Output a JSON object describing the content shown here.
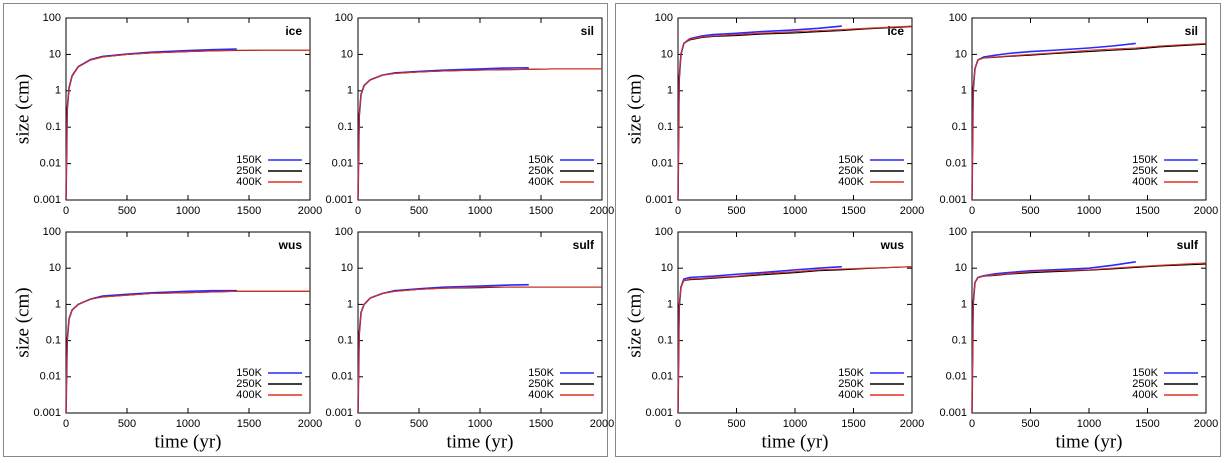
{
  "chart_data": [
    {
      "type": "line",
      "label": "ice",
      "ylabel": "size (cm)",
      "log_y": true,
      "legend": "lower right",
      "x": [
        0,
        10,
        25,
        50,
        100,
        200,
        300,
        500,
        700,
        1000,
        1200,
        1400,
        1600,
        2000
      ],
      "xlim": [
        0,
        2000
      ],
      "xticks": [
        0,
        500,
        1000,
        1500,
        2000
      ],
      "ylim": [
        0.001,
        100
      ],
      "yticks": [
        0.001,
        0.01,
        0.1,
        1,
        10,
        100
      ],
      "series": [
        {
          "name": "150K",
          "color": "#2a2aff",
          "values": [
            0.001,
            0.3,
            1.2,
            2.6,
            4.6,
            7.2,
            8.8,
            10.2,
            11.5,
            12.8,
            13.5,
            14,
            null,
            null
          ]
        },
        {
          "name": "250K",
          "color": "#000000",
          "values": [
            0.001,
            0.3,
            1.2,
            2.5,
            4.5,
            7,
            8.5,
            10,
            11,
            12,
            12.5,
            12.8,
            13,
            13
          ]
        },
        {
          "name": "400K",
          "color": "#e03020",
          "values": [
            0.001,
            0.3,
            1.2,
            2.5,
            4.5,
            7,
            8.5,
            10,
            11,
            12,
            12.5,
            13,
            13,
            13
          ]
        }
      ]
    },
    {
      "type": "line",
      "label": "sil",
      "log_y": true,
      "legend": "lower right",
      "x": [
        0,
        10,
        25,
        50,
        100,
        200,
        300,
        500,
        700,
        1000,
        1200,
        1400,
        1600,
        2000
      ],
      "xlim": [
        0,
        2000
      ],
      "xticks": [
        0,
        500,
        1000,
        1500,
        2000
      ],
      "ylim": [
        0.001,
        100
      ],
      "yticks": [
        0.001,
        0.01,
        0.1,
        1,
        10,
        100
      ],
      "series": [
        {
          "name": "150K",
          "color": "#2a2aff",
          "values": [
            0.001,
            0.2,
            0.8,
            1.4,
            2,
            2.7,
            3.1,
            3.4,
            3.7,
            4,
            4.2,
            4.3,
            null,
            null
          ]
        },
        {
          "name": "250K",
          "color": "#000000",
          "values": [
            0.001,
            0.2,
            0.8,
            1.4,
            2,
            2.7,
            3,
            3.3,
            3.5,
            3.7,
            3.8,
            3.9,
            4,
            4
          ]
        },
        {
          "name": "400K",
          "color": "#e03020",
          "values": [
            0.001,
            0.2,
            0.8,
            1.4,
            2,
            2.7,
            3,
            3.3,
            3.5,
            3.7,
            3.8,
            3.9,
            4,
            4
          ]
        }
      ]
    },
    {
      "type": "line",
      "label": "wus",
      "ylabel": "size (cm)",
      "xlabel": "time (yr)",
      "log_y": true,
      "legend": "lower right",
      "x": [
        0,
        10,
        25,
        50,
        100,
        200,
        300,
        500,
        700,
        1000,
        1200,
        1400,
        1600,
        2000
      ],
      "xlim": [
        0,
        2000
      ],
      "xticks": [
        0,
        500,
        1000,
        1500,
        2000
      ],
      "ylim": [
        0.001,
        100
      ],
      "yticks": [
        0.001,
        0.01,
        0.1,
        1,
        10,
        100
      ],
      "series": [
        {
          "name": "150K",
          "color": "#2a2aff",
          "values": [
            0.001,
            0.1,
            0.4,
            0.7,
            1,
            1.4,
            1.7,
            1.9,
            2.1,
            2.3,
            2.4,
            2.4,
            null,
            null
          ]
        },
        {
          "name": "250K",
          "color": "#000000",
          "values": [
            0.001,
            0.1,
            0.4,
            0.7,
            1,
            1.4,
            1.6,
            1.8,
            2,
            2.1,
            2.2,
            2.3,
            2.3,
            2.3
          ]
        },
        {
          "name": "400K",
          "color": "#e03020",
          "values": [
            0.001,
            0.1,
            0.4,
            0.7,
            1,
            1.4,
            1.6,
            1.8,
            2,
            2.1,
            2.2,
            2.3,
            2.3,
            2.3
          ]
        }
      ]
    },
    {
      "type": "line",
      "label": "sulf",
      "xlabel": "time (yr)",
      "log_y": true,
      "legend": "lower right",
      "x": [
        0,
        10,
        25,
        50,
        100,
        200,
        300,
        500,
        700,
        1000,
        1200,
        1400,
        1600,
        2000
      ],
      "xlim": [
        0,
        2000
      ],
      "xticks": [
        0,
        500,
        1000,
        1500,
        2000
      ],
      "ylim": [
        0.001,
        100
      ],
      "yticks": [
        0.001,
        0.01,
        0.1,
        1,
        10,
        100
      ],
      "series": [
        {
          "name": "150K",
          "color": "#2a2aff",
          "values": [
            0.001,
            0.15,
            0.6,
            1,
            1.5,
            2,
            2.4,
            2.7,
            3,
            3.2,
            3.4,
            3.5,
            null,
            null
          ]
        },
        {
          "name": "250K",
          "color": "#000000",
          "values": [
            0.001,
            0.15,
            0.6,
            1,
            1.5,
            2,
            2.3,
            2.6,
            2.8,
            2.9,
            3,
            3,
            3,
            3
          ]
        },
        {
          "name": "400K",
          "color": "#e03020",
          "values": [
            0.001,
            0.15,
            0.6,
            1,
            1.5,
            2,
            2.3,
            2.6,
            2.8,
            3,
            3,
            3,
            3,
            3
          ]
        }
      ]
    },
    {
      "type": "line",
      "label": "ice",
      "ylabel": "size (cm)",
      "log_y": true,
      "legend": "lower right",
      "x": [
        0,
        10,
        25,
        50,
        100,
        200,
        300,
        500,
        700,
        1000,
        1200,
        1400,
        1600,
        2000
      ],
      "xlim": [
        0,
        2000
      ],
      "xticks": [
        0,
        500,
        1000,
        1500,
        2000
      ],
      "ylim": [
        0.001,
        100
      ],
      "yticks": [
        0.001,
        0.01,
        0.1,
        1,
        10,
        100
      ],
      "series": [
        {
          "name": "150K",
          "color": "#2a2aff",
          "values": [
            0.001,
            2,
            10,
            20,
            27,
            32,
            35,
            38,
            42,
            47,
            52,
            60,
            null,
            null
          ]
        },
        {
          "name": "250K",
          "color": "#000000",
          "values": [
            0.001,
            2,
            10,
            20,
            25,
            29,
            31,
            33,
            36,
            39,
            42,
            45,
            50,
            58
          ]
        },
        {
          "name": "400K",
          "color": "#e03020",
          "values": [
            0.001,
            2,
            10,
            20,
            26,
            30,
            32,
            35,
            38,
            42,
            45,
            48,
            52,
            60
          ]
        }
      ]
    },
    {
      "type": "line",
      "label": "sil",
      "log_y": true,
      "legend": "lower right",
      "x": [
        0,
        10,
        25,
        50,
        100,
        200,
        300,
        500,
        700,
        1000,
        1200,
        1400,
        1600,
        2000
      ],
      "xlim": [
        0,
        2000
      ],
      "xticks": [
        0,
        500,
        1000,
        1500,
        2000
      ],
      "ylim": [
        0.001,
        100
      ],
      "yticks": [
        0.001,
        0.01,
        0.1,
        1,
        10,
        100
      ],
      "series": [
        {
          "name": "150K",
          "color": "#2a2aff",
          "values": [
            0.001,
            1,
            4,
            7,
            8.5,
            9.5,
            10.5,
            12,
            13,
            15,
            17,
            20,
            null,
            null
          ]
        },
        {
          "name": "250K",
          "color": "#000000",
          "values": [
            0.001,
            1,
            4,
            7,
            8,
            8.3,
            8.8,
            9.5,
            10.5,
            12,
            13,
            14,
            16,
            19
          ]
        },
        {
          "name": "400K",
          "color": "#e03020",
          "values": [
            0.001,
            1,
            4,
            7,
            8,
            8.5,
            9,
            10,
            11,
            13,
            14,
            15,
            17,
            20
          ]
        }
      ]
    },
    {
      "type": "line",
      "label": "wus",
      "ylabel": "size (cm)",
      "xlabel": "time (yr)",
      "log_y": true,
      "legend": "lower right",
      "x": [
        0,
        10,
        25,
        50,
        100,
        200,
        300,
        500,
        700,
        1000,
        1200,
        1400,
        1600,
        2000
      ],
      "xlim": [
        0,
        2000
      ],
      "xticks": [
        0,
        500,
        1000,
        1500,
        2000
      ],
      "ylim": [
        0.001,
        100
      ],
      "yticks": [
        0.001,
        0.01,
        0.1,
        1,
        10,
        100
      ],
      "series": [
        {
          "name": "150K",
          "color": "#2a2aff",
          "values": [
            0.001,
            0.8,
            3,
            5,
            5.5,
            5.8,
            6,
            6.8,
            7.5,
            9,
            10,
            11,
            null,
            null
          ]
        },
        {
          "name": "250K",
          "color": "#000000",
          "values": [
            0.001,
            0.8,
            3,
            4.5,
            4.8,
            5,
            5.3,
            5.8,
            6.5,
            7.5,
            8.5,
            9,
            9.8,
            11
          ]
        },
        {
          "name": "400K",
          "color": "#e03020",
          "values": [
            0.001,
            0.8,
            3,
            4.5,
            5,
            5.2,
            5.5,
            6,
            7,
            8,
            9,
            9.5,
            10,
            11
          ]
        }
      ]
    },
    {
      "type": "line",
      "label": "sulf",
      "xlabel": "time (yr)",
      "log_y": true,
      "legend": "lower right",
      "x": [
        0,
        10,
        25,
        50,
        100,
        200,
        300,
        500,
        700,
        1000,
        1200,
        1400,
        1600,
        2000
      ],
      "xlim": [
        0,
        2000
      ],
      "xticks": [
        0,
        500,
        1000,
        1500,
        2000
      ],
      "ylim": [
        0.001,
        100
      ],
      "yticks": [
        0.001,
        0.01,
        0.1,
        1,
        10,
        100
      ],
      "series": [
        {
          "name": "150K",
          "color": "#2a2aff",
          "values": [
            0.001,
            1,
            4,
            5.5,
            6.2,
            7,
            7.5,
            8.5,
            9,
            10,
            12,
            15,
            null,
            null
          ]
        },
        {
          "name": "250K",
          "color": "#000000",
          "values": [
            0.001,
            1,
            4,
            5.5,
            6,
            6.3,
            6.8,
            7.5,
            8,
            8.8,
            9.5,
            10.5,
            11.5,
            13
          ]
        },
        {
          "name": "400K",
          "color": "#e03020",
          "values": [
            0.001,
            1,
            4,
            5.5,
            6,
            6.5,
            7,
            8,
            8.5,
            9,
            10,
            11,
            12,
            14
          ]
        }
      ]
    }
  ]
}
